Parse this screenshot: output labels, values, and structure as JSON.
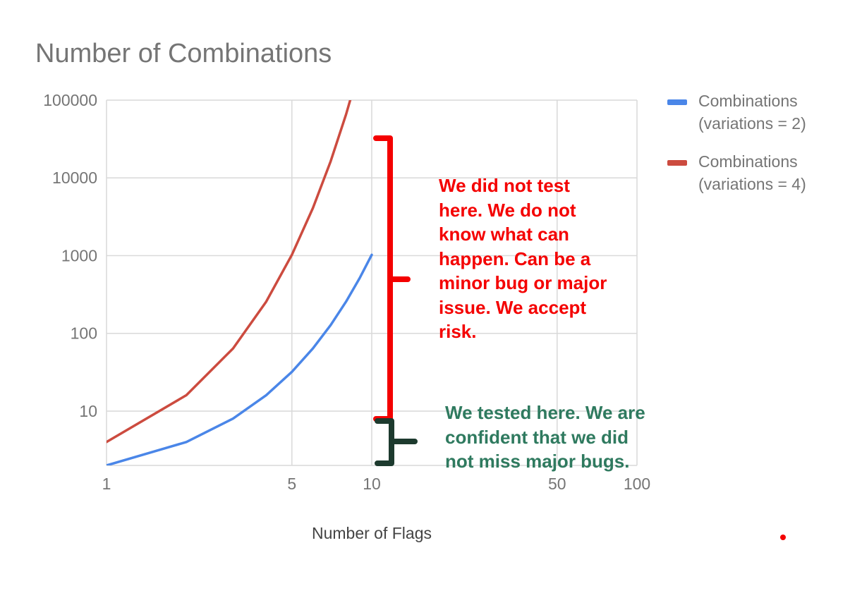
{
  "chart_data": {
    "type": "line",
    "title": "Number of Combinations",
    "xlabel": "Number of Flags",
    "ylabel": "",
    "x_scale": "log",
    "y_scale": "log",
    "xlim": [
      1,
      100
    ],
    "ylim": [
      2,
      100000
    ],
    "x_ticks": [
      1,
      5,
      10,
      50,
      100
    ],
    "x_tick_labels": [
      "1",
      "5",
      "10",
      "50",
      "100"
    ],
    "y_ticks": [
      10,
      100,
      1000,
      10000,
      100000
    ],
    "y_tick_labels": [
      "10",
      "100",
      "1000",
      "10000",
      "100000"
    ],
    "grid": true,
    "legend_position": "right",
    "series": [
      {
        "name": "Combinations (variations = 2)",
        "legend_lines": [
          "Combinations",
          "(variations = 2)"
        ],
        "color": "#4a86e8",
        "x": [
          1,
          2,
          3,
          4,
          5,
          6,
          7,
          8,
          9,
          10
        ],
        "y": [
          2,
          4,
          8,
          16,
          32,
          64,
          128,
          256,
          512,
          1024
        ]
      },
      {
        "name": "Combinations (variations = 4)",
        "legend_lines": [
          "Combinations",
          "(variations = 4)"
        ],
        "color": "#cc4b3f",
        "x": [
          1,
          2,
          3,
          4,
          5,
          6,
          7,
          8,
          9
        ],
        "y": [
          4,
          16,
          64,
          256,
          1024,
          4096,
          16384,
          65536,
          262144
        ]
      }
    ],
    "annotations": [
      {
        "name": "untested",
        "color": "#f40000",
        "text": "We did not test here. We do not know what can happen. Can be a minor bug or major issue. We accept risk.",
        "lines": [
          "We did not test",
          "here. We do not",
          "know what can",
          "happen. Can be a",
          "minor bug or major",
          "issue. We accept",
          "risk."
        ]
      },
      {
        "name": "tested",
        "color": "#2f7a5f",
        "brace_color": "#1d3a2e",
        "text": "We tested here. We are confident that we did not miss major bugs.",
        "lines": [
          "We tested here. We are",
          "confident  that we did",
          "not miss major bugs."
        ]
      }
    ]
  }
}
